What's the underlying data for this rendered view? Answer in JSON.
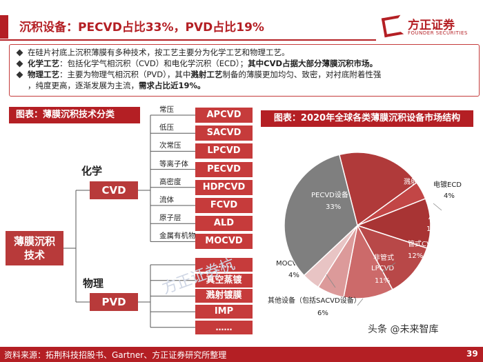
{
  "title": "沉积设备：PECVD占比33%，PVD占比19%",
  "logo": {
    "name": "方正证券",
    "sub": "FOUNDER SECURITIES"
  },
  "bullets": [
    {
      "parts": [
        {
          "text": "在硅片衬底上沉积薄膜有多种技术，按工艺主要分为化学工艺和物理工艺。",
          "bold": false
        }
      ]
    },
    {
      "parts": [
        {
          "text": "化学工艺",
          "bold": true
        },
        {
          "text": "：包括化学气相沉积（CVD）和电化学沉积（ECD）；",
          "bold": false
        },
        {
          "text": "其中CVD占据大部分薄膜沉积市场。",
          "bold": true
        }
      ]
    },
    {
      "parts": [
        {
          "text": "物理工艺",
          "bold": true
        },
        {
          "text": "：主要为物理气相沉积（PVD），其中",
          "bold": false
        },
        {
          "text": "溅射工艺",
          "bold": true
        },
        {
          "text": "制备的薄膜更加均匀、致密，对衬底附着性强",
          "bold": false
        }
      ]
    },
    {
      "parts": [
        {
          "text": "，纯度更高，逐渐发展为主流，",
          "bold": false
        },
        {
          "text": "需求占比近19%。",
          "bold": true
        }
      ],
      "continuation": true
    }
  ],
  "left_panel": {
    "header": "图表：薄膜沉积技术分类",
    "root": [
      "薄膜沉积",
      "技术"
    ],
    "chem_label": "化学",
    "phys_label": "物理",
    "cvd": "CVD",
    "pvd": "PVD",
    "cvd_items": [
      {
        "sub": "常压",
        "box": "APCVD"
      },
      {
        "sub": "低压",
        "box": "SACVD"
      },
      {
        "sub": "次常压",
        "box": "LPCVD"
      },
      {
        "sub": "等离子体",
        "box": "PECVD"
      },
      {
        "sub": "高密度",
        "box": "HDPCVD"
      },
      {
        "sub": "流体",
        "box": "FCVD"
      },
      {
        "sub": "原子层",
        "box": "ALD"
      },
      {
        "sub": "金属有机物",
        "box": "MOCVD"
      }
    ],
    "pvd_items": [
      "……",
      "真空蒸镀",
      "溅射镀膜",
      "IMP",
      "……"
    ]
  },
  "right_panel": {
    "header": "图表：2020年全球各类薄膜沉积设备市场结构"
  },
  "chart_data": {
    "type": "pie",
    "title": "2020年全球各类薄膜沉积设备市场结构",
    "slices": [
      {
        "label": "溅射PVD",
        "value": 19,
        "color": "#b03a3a"
      },
      {
        "label": "电镀ECD",
        "value": 4,
        "color": "#c24646"
      },
      {
        "label": "ALD设备",
        "value": 11,
        "color": "#a83434"
      },
      {
        "label": "管式CVD",
        "value": 12,
        "color": "#b84848"
      },
      {
        "label": "非管式LPCVD",
        "value": 11,
        "color": "#cc6a6a"
      },
      {
        "label": "其他设备（包括SACVD设备）",
        "value": 6,
        "color": "#dc9a9a"
      },
      {
        "label": "MOCVD",
        "value": 4,
        "color": "#e8c4c4"
      },
      {
        "label": "PECVD设备",
        "value": 33,
        "color": "#7f7f7f"
      }
    ]
  },
  "footer": {
    "source": "资料来源：拓荆科技招股书、Gartner、方正证券研究所整理",
    "page": "39"
  },
  "watermark": "头条 @未来智库",
  "bg_watermark": "方正证券杭"
}
